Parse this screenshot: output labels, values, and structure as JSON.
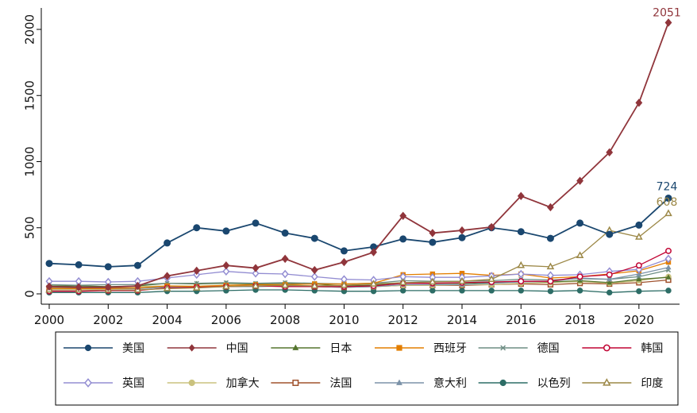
{
  "chart_data": {
    "type": "line",
    "title": "",
    "xlabel": "",
    "ylabel": "",
    "x": [
      2000,
      2001,
      2002,
      2003,
      2004,
      2005,
      2006,
      2007,
      2008,
      2009,
      2010,
      2011,
      2012,
      2013,
      2014,
      2015,
      2016,
      2017,
      2018,
      2019,
      2020,
      2021
    ],
    "xlim": [
      2000,
      2021
    ],
    "ylim": [
      0,
      2100
    ],
    "x_ticks": [
      "2000",
      "2002",
      "2004",
      "2006",
      "2008",
      "2010",
      "2012",
      "2014",
      "2016",
      "2018",
      "2020"
    ],
    "y_ticks": [
      "0",
      "500",
      "1000",
      "1500",
      "2000"
    ],
    "grid": false,
    "legend_position": "bottom",
    "annotations": [
      {
        "series": "中国",
        "x": 2021,
        "y": 2051,
        "text": "2051"
      },
      {
        "series": "美国",
        "x": 2021,
        "y": 724,
        "text": "724"
      },
      {
        "series": "印度",
        "x": 2021,
        "y": 608,
        "text": "608"
      }
    ],
    "series": [
      {
        "name": "美国",
        "color": "#1a476f",
        "marker": "circle",
        "values": [
          230,
          220,
          205,
          215,
          385,
          500,
          475,
          535,
          460,
          420,
          325,
          355,
          415,
          390,
          425,
          500,
          470,
          420,
          535,
          450,
          520,
          724
        ]
      },
      {
        "name": "中国",
        "color": "#90353b",
        "marker": "diamond",
        "values": [
          55,
          50,
          50,
          60,
          135,
          175,
          215,
          195,
          265,
          180,
          240,
          315,
          590,
          460,
          480,
          505,
          740,
          655,
          855,
          1070,
          1445,
          2051
        ]
      },
      {
        "name": "日本",
        "color": "#55752f",
        "marker": "triangle",
        "values": [
          60,
          60,
          55,
          60,
          80,
          75,
          80,
          75,
          80,
          75,
          60,
          65,
          85,
          80,
          80,
          85,
          95,
          90,
          100,
          85,
          110,
          125
        ]
      },
      {
        "name": "西班牙",
        "color": "#e37e00",
        "marker": "square",
        "values": [
          40,
          40,
          40,
          45,
          60,
          55,
          65,
          70,
          70,
          75,
          75,
          80,
          145,
          150,
          155,
          140,
          150,
          120,
          130,
          150,
          175,
          240
        ]
      },
      {
        "name": "德国",
        "color": "#6e8e84",
        "marker": "x",
        "values": [
          70,
          65,
          70,
          70,
          80,
          80,
          85,
          80,
          85,
          80,
          75,
          80,
          100,
          95,
          95,
          100,
          110,
          105,
          115,
          110,
          130,
          180
        ]
      },
      {
        "name": "韩国",
        "color": "#c10534",
        "marker": "circle-hollow",
        "values": [
          20,
          20,
          25,
          25,
          45,
          50,
          55,
          60,
          55,
          55,
          55,
          60,
          80,
          80,
          85,
          90,
          95,
          95,
          130,
          145,
          215,
          325
        ]
      },
      {
        "name": "英国",
        "color": "#938dd2",
        "marker": "diamond-hollow",
        "values": [
          95,
          95,
          90,
          95,
          120,
          145,
          170,
          155,
          150,
          130,
          110,
          105,
          130,
          125,
          125,
          135,
          150,
          140,
          145,
          170,
          185,
          265
        ]
      },
      {
        "name": "加拿大",
        "color": "#cac27e",
        "marker": "circle",
        "values": [
          50,
          50,
          50,
          55,
          60,
          60,
          65,
          65,
          65,
          60,
          55,
          55,
          65,
          65,
          70,
          70,
          80,
          85,
          95,
          80,
          100,
          130
        ]
      },
      {
        "name": "法国",
        "color": "#a0522d",
        "marker": "square-hollow",
        "values": [
          45,
          45,
          45,
          45,
          55,
          55,
          60,
          60,
          60,
          55,
          50,
          55,
          65,
          65,
          65,
          70,
          75,
          70,
          80,
          75,
          85,
          105
        ]
      },
      {
        "name": "意大利",
        "color": "#7b92a8",
        "marker": "triangle",
        "values": [
          40,
          40,
          40,
          40,
          50,
          55,
          55,
          55,
          60,
          55,
          50,
          55,
          70,
          70,
          70,
          80,
          90,
          95,
          120,
          110,
          150,
          200
        ]
      },
      {
        "name": "以色列",
        "color": "#2d6d66",
        "marker": "circle",
        "values": [
          10,
          10,
          10,
          10,
          20,
          20,
          25,
          30,
          30,
          25,
          20,
          20,
          25,
          25,
          25,
          25,
          25,
          20,
          25,
          10,
          20,
          25
        ]
      },
      {
        "name": "印度",
        "color": "#9c8847",
        "marker": "triangle-hollow",
        "values": [
          30,
          30,
          30,
          30,
          40,
          45,
          55,
          60,
          65,
          60,
          65,
          75,
          85,
          90,
          95,
          110,
          215,
          205,
          290,
          480,
          430,
          608
        ]
      }
    ]
  }
}
